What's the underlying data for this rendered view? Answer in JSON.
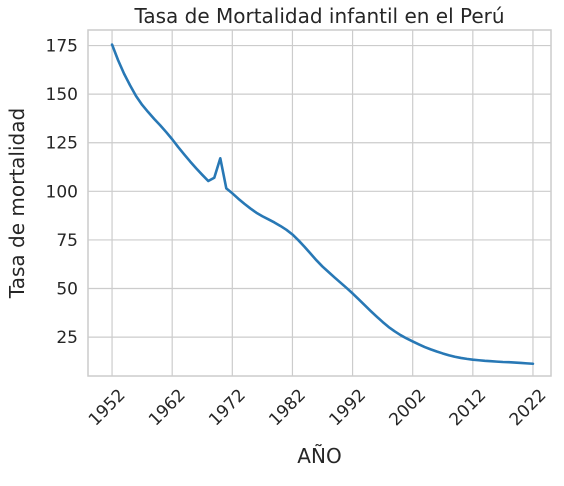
{
  "chart_data": {
    "type": "line",
    "title": "Tasa de Mortalidad infantil en el Perú",
    "xlabel": "AÑO",
    "ylabel": "Tasa de mortalidad",
    "xlim": [
      1948,
      2025
    ],
    "ylim": [
      5,
      183
    ],
    "xticks": [
      1952,
      1962,
      1972,
      1982,
      1992,
      2002,
      2012,
      2022
    ],
    "yticks": [
      25,
      50,
      75,
      100,
      125,
      150,
      175
    ],
    "grid": true,
    "legend": "none",
    "series": [
      {
        "color": "#2878b5",
        "x": [
          1952,
          1953,
          1954,
          1955,
          1956,
          1957,
          1958,
          1959,
          1960,
          1961,
          1962,
          1963,
          1964,
          1965,
          1966,
          1967,
          1968,
          1969,
          1970,
          1971,
          1972,
          1973,
          1974,
          1975,
          1976,
          1977,
          1978,
          1979,
          1980,
          1981,
          1982,
          1983,
          1984,
          1985,
          1986,
          1987,
          1988,
          1989,
          1990,
          1991,
          1992,
          1993,
          1994,
          1995,
          1996,
          1997,
          1998,
          1999,
          2000,
          2001,
          2002,
          2003,
          2004,
          2005,
          2006,
          2007,
          2008,
          2009,
          2010,
          2011,
          2012,
          2013,
          2014,
          2015,
          2016,
          2017,
          2018,
          2019,
          2020,
          2021,
          2022
        ],
        "y": [
          175.5,
          167.5,
          160.5,
          154.5,
          149.0,
          144.5,
          140.8,
          137.3,
          134.0,
          130.5,
          126.8,
          122.8,
          119.0,
          115.3,
          111.8,
          108.5,
          105.3,
          107.0,
          117.0,
          101.5,
          99.0,
          96.2,
          93.6,
          91.2,
          89.0,
          87.2,
          85.6,
          84.0,
          82.2,
          80.2,
          77.8,
          74.8,
          71.5,
          68.0,
          64.5,
          61.3,
          58.5,
          55.7,
          53.0,
          50.3,
          47.5,
          44.5,
          41.5,
          38.5,
          35.6,
          32.8,
          30.2,
          28.0,
          26.0,
          24.3,
          22.8,
          21.3,
          19.9,
          18.7,
          17.6,
          16.6,
          15.7,
          14.9,
          14.3,
          13.8,
          13.4,
          13.1,
          12.8,
          12.6,
          12.4,
          12.2,
          12.1,
          11.9,
          11.7,
          11.5,
          11.3
        ]
      }
    ]
  }
}
